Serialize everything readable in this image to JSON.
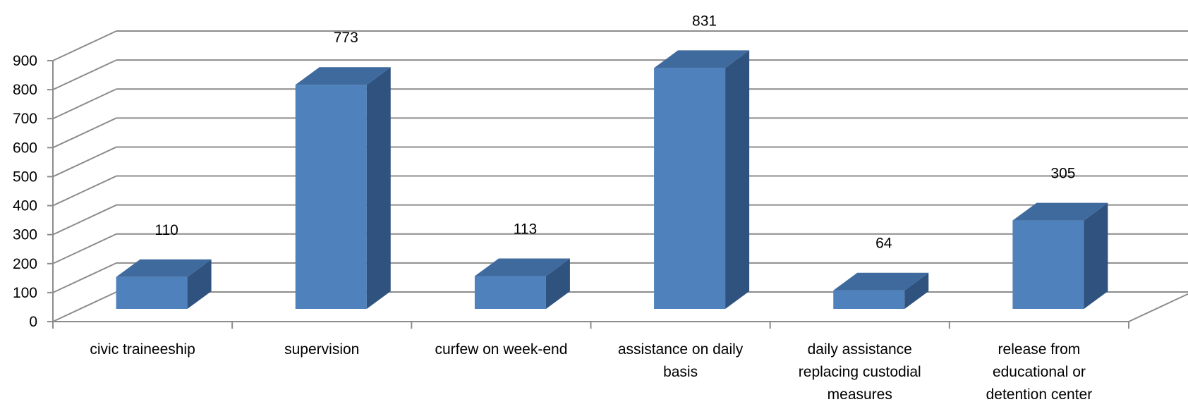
{
  "chart_data": {
    "type": "bar",
    "categories": [
      [
        "civic traineeship"
      ],
      [
        "supervision"
      ],
      [
        "curfew on week-end"
      ],
      [
        "assistance on daily",
        "basis"
      ],
      [
        "daily assistance",
        "replacing custodial",
        "measures"
      ],
      [
        "release from",
        "educational or",
        "detention center"
      ]
    ],
    "values": [
      110,
      773,
      113,
      831,
      64,
      305
    ],
    "data_labels": [
      "110",
      "773",
      "113",
      "831",
      "64",
      "305"
    ],
    "yticks": [
      0,
      100,
      200,
      300,
      400,
      500,
      600,
      700,
      800,
      900
    ],
    "ytick_labels": [
      "0",
      "100",
      "200",
      "300",
      "400",
      "500",
      "600",
      "700",
      "800",
      "900"
    ],
    "ylim": [
      0,
      900
    ],
    "grid": true,
    "legend": "none",
    "colors": {
      "bar_front": "#4F81BD",
      "bar_top": "#3F6A9E",
      "bar_side": "#30527E",
      "grid": "#8C8C8C"
    }
  }
}
